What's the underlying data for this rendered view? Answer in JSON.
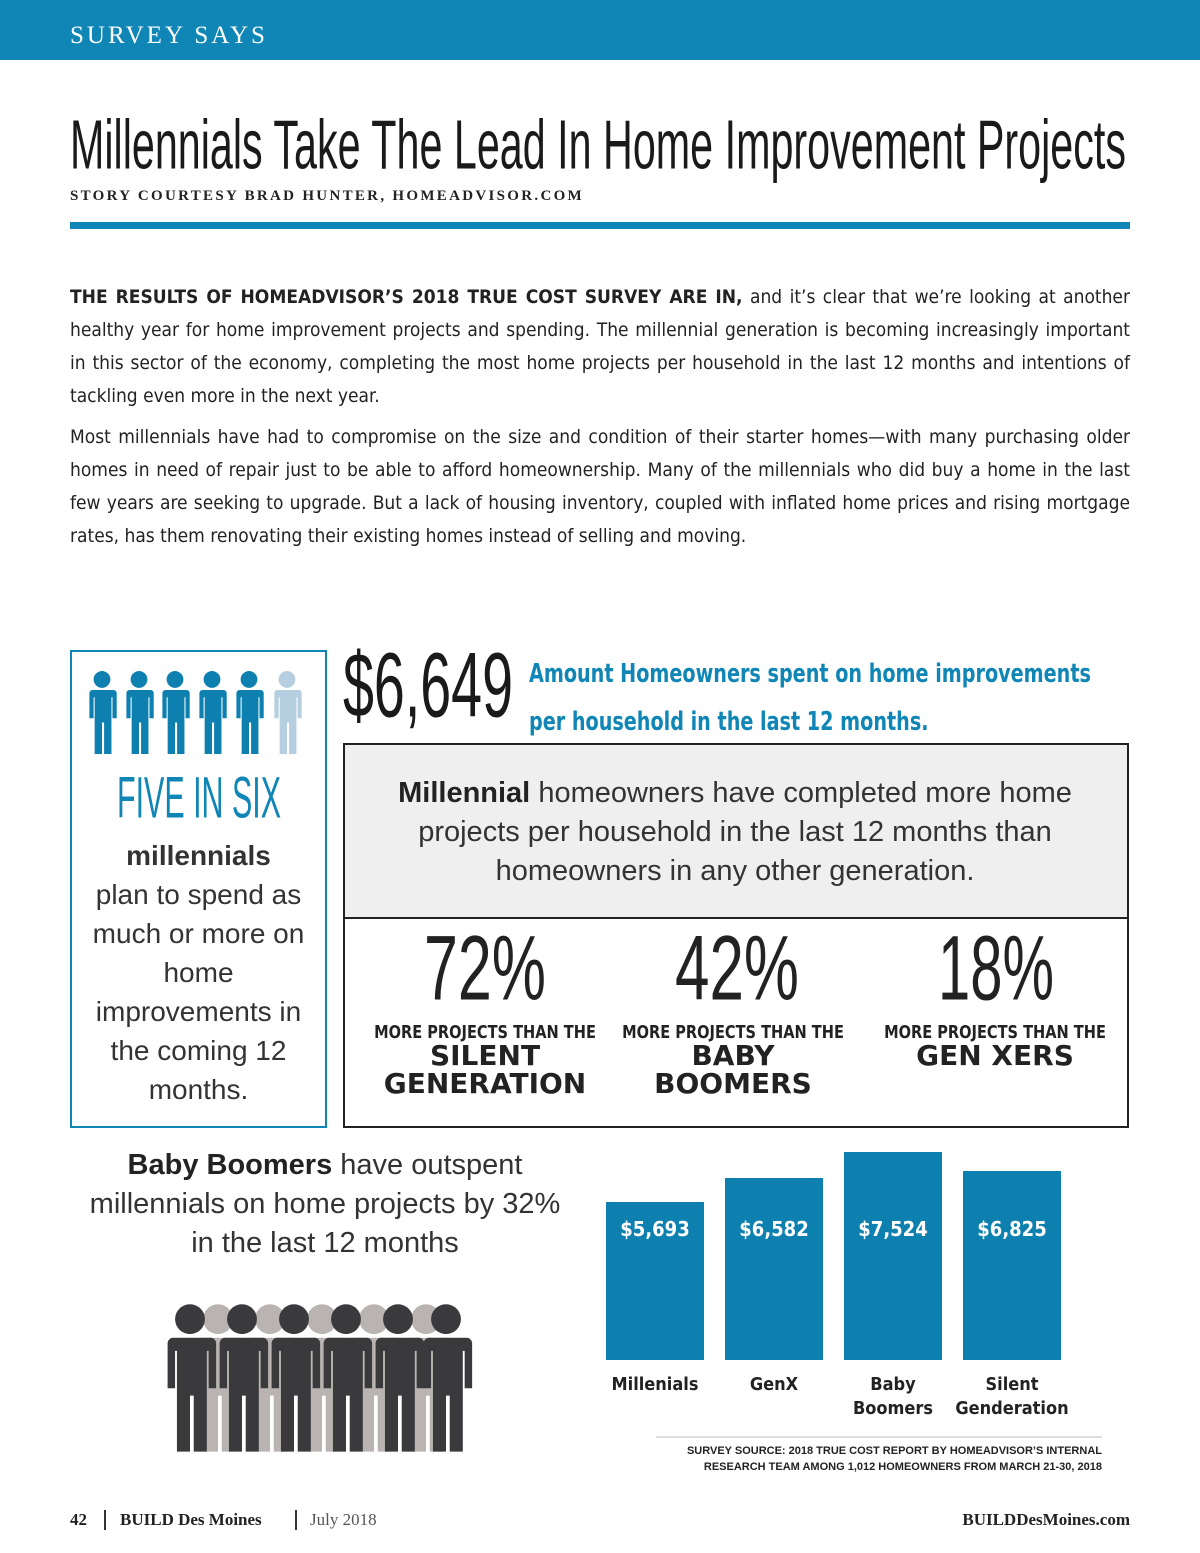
{
  "header": {
    "section": "SURVEY SAYS",
    "title": "Millennials Take The Lead In Home Improvement Projects",
    "byline": "STORY COURTESY BRAD HUNTER, HOMEADVISOR.COM"
  },
  "body": {
    "lead": "THE RESULTS OF HOMEADVISOR’S 2018 TRUE COST SURVEY ARE IN,",
    "paragraph_1": "and it’s clear that we’re looking at another healthy year for home improvement projects and spending. The millennial generation is becoming increasingly important in this sector of the economy, completing the most home projects per household in the last 12 months and intentions of tackling even more in the next year.",
    "paragraph_2": "Most millennials have had to compromise on the size and condition of their starter homes—with many purchasing older homes in need of repair just to be able to afford homeownership. Many of the millennials who did buy a home in the last few years are seeking to upgrade. But a lack of housing inventory, coupled with inflated home prices and rising mortgage rates, has them renovating their existing homes instead of selling and moving."
  },
  "five_in_six": {
    "headline": "FIVE IN SIX",
    "bold": "millennials",
    "text": "plan to spend as much or more on home improvements in the coming 12 months."
  },
  "spend": {
    "amount": "$6,649",
    "caption": "Amount Homeowners spent on home improvements per household in the last 12 months."
  },
  "projects": {
    "bold": "Millennial",
    "text": "homeowners have completed more home projects per household in the last 12 months than homeowners in any other generation.",
    "stats": [
      {
        "percent": "72%",
        "prefix": "MORE PROJECTS THAN THE",
        "group": "SILENT GENERATION"
      },
      {
        "percent": "42%",
        "prefix": "MORE PROJECTS THAN THE",
        "group": "BABY BOOMERS"
      },
      {
        "percent": "18%",
        "prefix": "MORE PROJECTS THAN THE",
        "group": "GEN XERS"
      }
    ]
  },
  "outspent": {
    "bold": "Baby Boomers",
    "text": "have outspent millennials on home projects by 32% in the last 12 months"
  },
  "bar_chart": {
    "categories": [
      "Millenials",
      "GenX",
      "Baby Boomers",
      "Silent Genderation"
    ],
    "values": [
      5693,
      6582,
      7524,
      6825
    ],
    "value_labels": [
      "$5,693",
      "$6,582",
      "$7,524",
      "$6,825"
    ],
    "color": "#0d80b0"
  },
  "source": "SURVEY SOURCE: 2018 TRUE COST REPORT BY HOMEADVISOR’S INTERNAL RESEARCH TEAM AMONG 1,012 HOMEOWNERS FROM MARCH 21-30, 2018",
  "footer": {
    "page": "42",
    "publication": "BUILD Des Moines",
    "date": "July 2018",
    "website": "BUILDDesMoines.com"
  }
}
